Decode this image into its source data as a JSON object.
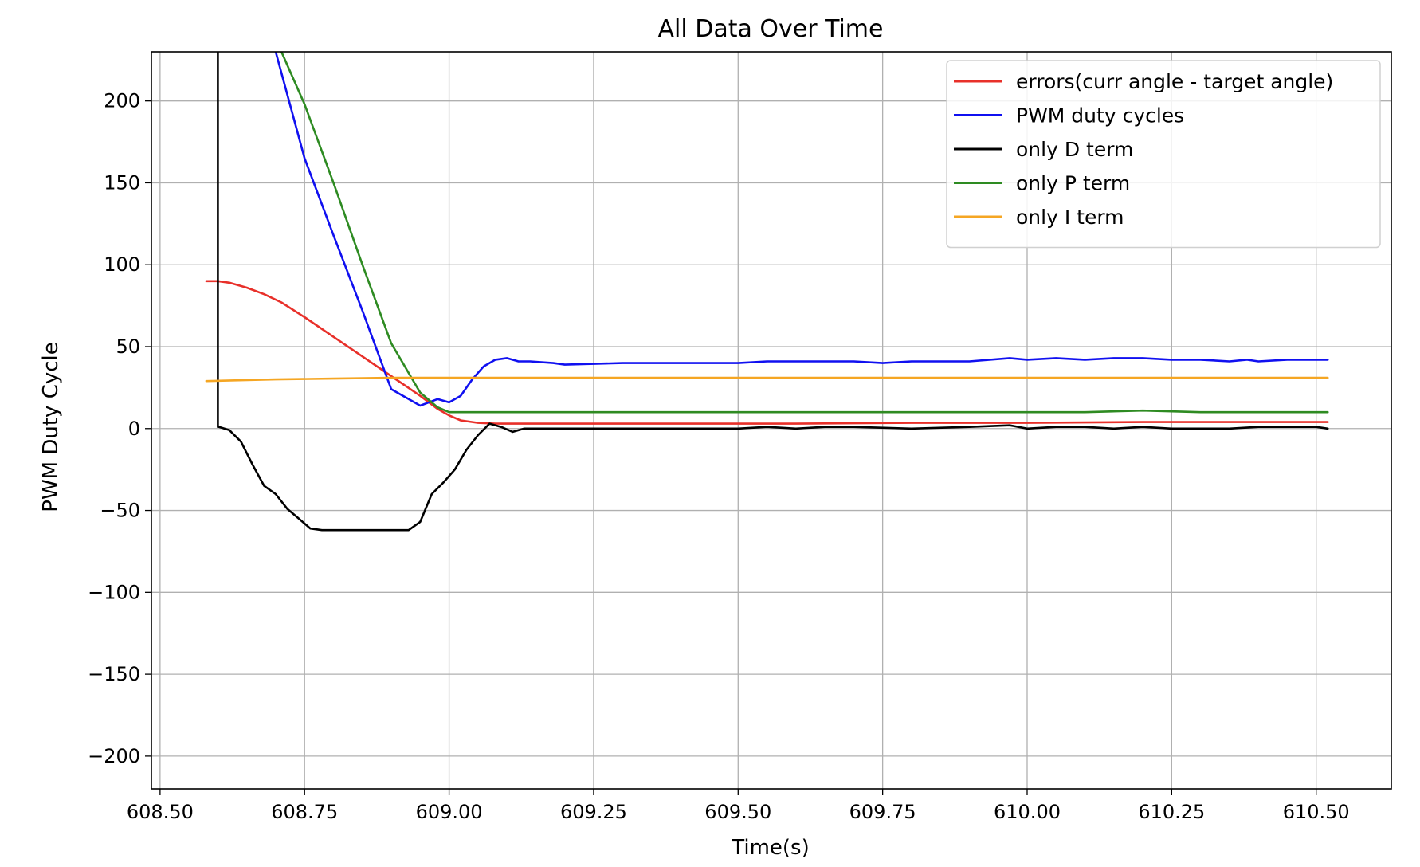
{
  "chart_data": {
    "type": "line",
    "title": "All Data Over Time",
    "xlabel": "Time(s)",
    "ylabel": "PWM Duty Cycle",
    "xlim": [
      608.485,
      610.63
    ],
    "ylim": [
      -220,
      230
    ],
    "grid": true,
    "legend_position": "top-right",
    "x_ticks": [
      608.5,
      608.75,
      609.0,
      609.25,
      609.5,
      609.75,
      610.0,
      610.25,
      610.5
    ],
    "x_tick_labels": [
      "608.50",
      "608.75",
      "609.00",
      "609.25",
      "609.50",
      "609.75",
      "610.00",
      "610.25",
      "610.50"
    ],
    "y_ticks": [
      -200,
      -150,
      -100,
      -50,
      0,
      50,
      100,
      150,
      200
    ],
    "y_tick_labels": [
      "−200",
      "−150",
      "−100",
      "−50",
      "0",
      "50",
      "100",
      "150",
      "200"
    ],
    "series": [
      {
        "name": "errors(curr angle - target angle)",
        "color": "#e8302a",
        "x": [
          608.58,
          608.6,
          608.62,
          608.65,
          608.68,
          608.71,
          608.75,
          608.8,
          608.85,
          608.9,
          608.95,
          608.98,
          609.0,
          609.02,
          609.05,
          609.08,
          609.12,
          609.2,
          609.4,
          609.6,
          609.8,
          610.0,
          610.2,
          610.4,
          610.52
        ],
        "values": [
          90,
          90,
          89,
          86,
          82,
          77,
          68,
          56,
          44,
          32,
          20,
          12,
          8,
          5,
          3.5,
          3,
          3,
          3,
          3,
          3,
          3.5,
          3.5,
          4,
          4,
          4
        ]
      },
      {
        "name": "PWM duty cycles",
        "color": "#1010f0",
        "x": [
          608.7,
          608.75,
          608.8,
          608.85,
          608.9,
          608.95,
          608.98,
          609.0,
          609.02,
          609.04,
          609.06,
          609.08,
          609.1,
          609.12,
          609.14,
          609.18,
          609.2,
          609.3,
          609.4,
          609.5,
          609.55,
          609.6,
          609.7,
          609.75,
          609.8,
          609.9,
          609.97,
          610.0,
          610.05,
          610.1,
          610.15,
          610.2,
          610.25,
          610.3,
          610.35,
          610.38,
          610.4,
          610.45,
          610.5,
          610.52
        ],
        "values": [
          230,
          165,
          118,
          72,
          24,
          14,
          18,
          16,
          20,
          30,
          38,
          42,
          43,
          41,
          41,
          40,
          39,
          40,
          40,
          40,
          41,
          41,
          41,
          40,
          41,
          41,
          43,
          42,
          43,
          42,
          43,
          43,
          42,
          42,
          41,
          42,
          41,
          42,
          42,
          42
        ]
      },
      {
        "name": "only D term",
        "color": "#000000",
        "x": [
          608.6,
          608.6,
          608.602,
          608.62,
          608.64,
          608.66,
          608.68,
          608.7,
          608.72,
          608.74,
          608.76,
          608.78,
          608.8,
          608.85,
          608.9,
          608.93,
          608.95,
          608.97,
          608.99,
          609.01,
          609.03,
          609.05,
          609.07,
          609.09,
          609.11,
          609.13,
          609.15,
          609.2,
          609.3,
          609.4,
          609.5,
          609.55,
          609.6,
          609.65,
          609.7,
          609.8,
          609.9,
          609.97,
          610.0,
          610.05,
          610.1,
          610.15,
          610.2,
          610.25,
          610.3,
          610.35,
          610.4,
          610.45,
          610.5,
          610.52
        ],
        "values": [
          230,
          1,
          1,
          -1,
          -8,
          -22,
          -35,
          -40,
          -49,
          -55,
          -61,
          -62,
          -62,
          -62,
          -62,
          -62,
          -57,
          -40,
          -33,
          -25,
          -13,
          -4,
          3,
          1,
          -2,
          0,
          0,
          0,
          0,
          0,
          0,
          1,
          0,
          1,
          1,
          0,
          1,
          2,
          0,
          1,
          1,
          0,
          1,
          0,
          0,
          0,
          1,
          1,
          1,
          0
        ]
      },
      {
        "name": "only P term",
        "color": "#2e8b22",
        "x": [
          608.71,
          608.75,
          608.8,
          608.85,
          608.9,
          608.95,
          608.98,
          609.0,
          609.02,
          609.04,
          609.06,
          609.1,
          609.2,
          609.3,
          609.4,
          609.5,
          609.6,
          609.7,
          609.8,
          609.9,
          610.0,
          610.1,
          610.2,
          610.3,
          610.4,
          610.52
        ],
        "values": [
          230,
          198,
          150,
          100,
          52,
          22,
          13,
          10,
          10,
          10,
          10,
          10,
          10,
          10,
          10,
          10,
          10,
          10,
          10,
          10,
          10,
          10,
          11,
          10,
          10,
          10
        ]
      },
      {
        "name": "only I term",
        "color": "#f5a623",
        "x": [
          608.58,
          608.7,
          608.8,
          608.9,
          609.0,
          609.2,
          609.5,
          610.0,
          610.52
        ],
        "values": [
          29,
          30,
          30.5,
          31,
          31,
          31,
          31,
          31,
          31
        ]
      }
    ]
  }
}
